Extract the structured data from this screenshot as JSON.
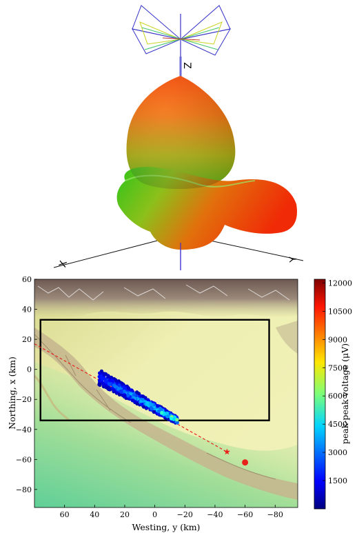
{
  "antenna_pattern": {
    "axis_labels": {
      "z": "Z",
      "x": "X",
      "y": "Y"
    }
  },
  "chart_data": {
    "type": "scatter",
    "xlabel": "Westing, y (km)",
    "ylabel": "Northing, x (km)",
    "xlim": [
      80,
      -95
    ],
    "ylim": [
      -92,
      60
    ],
    "x_ticks": [
      "60",
      "40",
      "20",
      "0",
      "−20",
      "−40",
      "−60",
      "−80"
    ],
    "y_ticks": [
      "60",
      "40",
      "20",
      "0",
      "−20",
      "−40",
      "−60",
      "−80"
    ],
    "colorbar": {
      "label": "peak-peak voltage (μV)",
      "range": [
        0,
        12200
      ],
      "ticks": [
        "1500",
        "3000",
        "4500",
        "6000",
        "7500",
        "9000",
        "10500",
        "12000"
      ]
    },
    "rectangle": {
      "x_range": [
        76,
        -76
      ],
      "y_range": [
        -34,
        33
      ]
    },
    "trajectory_line": {
      "x": [
        80,
        -48
      ],
      "y": [
        17,
        -55
      ],
      "color": "#e8231c",
      "style": "dashed"
    },
    "star_marker": {
      "x": -48,
      "y": -55,
      "color": "#e8231c"
    },
    "circle_marker": {
      "x": -60,
      "y": -62,
      "color": "#e8231c"
    },
    "detection_cluster": {
      "x_range": [
        37,
        -15
      ],
      "y_range": [
        -5,
        -34
      ],
      "value_range": [
        500,
        7800
      ]
    }
  }
}
